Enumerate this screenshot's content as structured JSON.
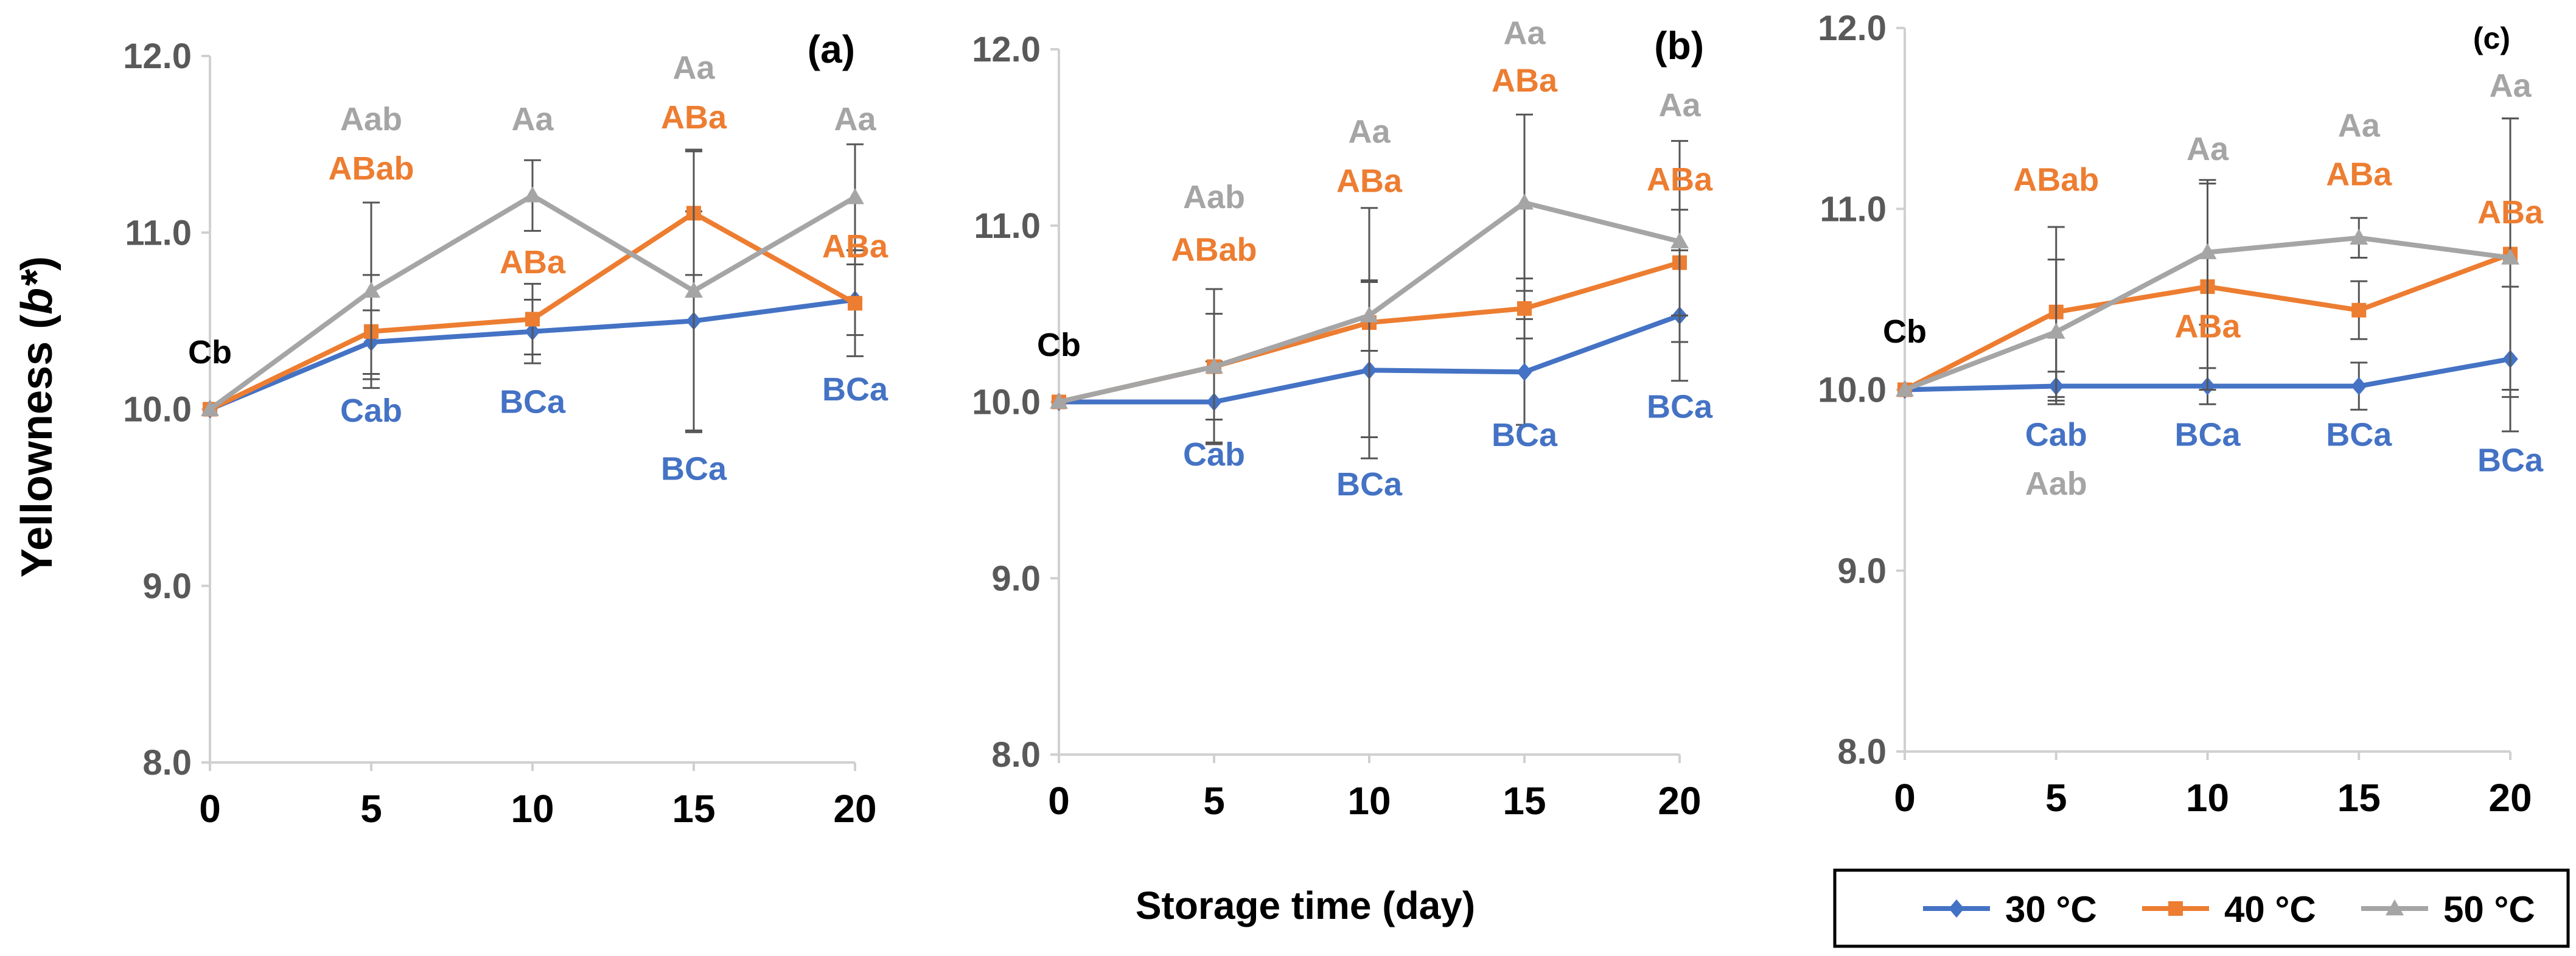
{
  "figure": {
    "ylabel_main": "Yellowness (",
    "ylabel_italic": "b*",
    "ylabel_close": ")",
    "xlabel": "Storage time (day)"
  },
  "series_colors": {
    "30 °C": "#4472C4",
    "40 °C": "#ED7D31",
    "50 °C": "#A5A5A5"
  },
  "legend": {
    "entries": [
      {
        "label": "30 °C",
        "color": "#4472C4",
        "marker": "diamond"
      },
      {
        "label": "40 °C",
        "color": "#ED7D31",
        "marker": "square"
      },
      {
        "label": "50 °C",
        "color": "#A5A5A5",
        "marker": "triangle"
      }
    ]
  },
  "chart_data": [
    {
      "type": "line",
      "panel_label": "(a)",
      "x": [
        0,
        5,
        10,
        15,
        20
      ],
      "xticks": [
        "0",
        "5",
        "10",
        "15",
        "20"
      ],
      "ylim": [
        8.0,
        12.0
      ],
      "yticks": [
        "8.0",
        "9.0",
        "10.0",
        "11.0",
        "12.0"
      ],
      "series": [
        {
          "name": "30 °C",
          "values": [
            10.0,
            10.38,
            10.44,
            10.5,
            10.62
          ],
          "err": [
            0.0,
            0.18,
            0.18,
            0.62,
            0.2
          ]
        },
        {
          "name": "40 °C",
          "values": [
            10.0,
            10.44,
            10.51,
            11.11,
            10.6
          ],
          "err": [
            0.0,
            0.32,
            0.2,
            0.35,
            0.3
          ]
        },
        {
          "name": "50 °C",
          "values": [
            10.0,
            10.67,
            11.21,
            10.67,
            11.2
          ],
          "err": [
            0.0,
            0.5,
            0.2,
            0.8,
            0.3
          ]
        }
      ],
      "annotations": [
        {
          "text": "Cb",
          "x": 0,
          "y": 10.26,
          "color": "#000000"
        },
        {
          "text": "Aab",
          "x": 5,
          "y": 11.58,
          "color": "#A5A5A5"
        },
        {
          "text": "ABab",
          "x": 5,
          "y": 11.3,
          "color": "#ED7D31"
        },
        {
          "text": "Cab",
          "x": 5,
          "y": 9.93,
          "color": "#4472C4"
        },
        {
          "text": "Aa",
          "x": 10,
          "y": 11.58,
          "color": "#A5A5A5"
        },
        {
          "text": "ABa",
          "x": 10,
          "y": 10.77,
          "color": "#ED7D31"
        },
        {
          "text": "BCa",
          "x": 10,
          "y": 9.98,
          "color": "#4472C4"
        },
        {
          "text": "Aa",
          "x": 15,
          "y": 11.87,
          "color": "#A5A5A5"
        },
        {
          "text": "ABa",
          "x": 15,
          "y": 11.59,
          "color": "#ED7D31"
        },
        {
          "text": "BCa",
          "x": 15,
          "y": 9.6,
          "color": "#4472C4"
        },
        {
          "text": "Aa",
          "x": 20,
          "y": 11.58,
          "color": "#A5A5A5"
        },
        {
          "text": "ABa",
          "x": 20,
          "y": 10.86,
          "color": "#ED7D31"
        },
        {
          "text": "BCa",
          "x": 20,
          "y": 10.05,
          "color": "#4472C4"
        }
      ]
    },
    {
      "type": "line",
      "panel_label": "(b)",
      "x": [
        0,
        5,
        10,
        15,
        20
      ],
      "xticks": [
        "0",
        "5",
        "10",
        "15",
        "20"
      ],
      "ylim": [
        8.0,
        12.0
      ],
      "yticks": [
        "8.0",
        "9.0",
        "10.0",
        "11.0",
        "12.0"
      ],
      "series": [
        {
          "name": "30 °C",
          "values": [
            10.0,
            10.0,
            10.18,
            10.17,
            10.49
          ],
          "err": [
            0.0,
            0.23,
            0.5,
            0.3,
            0.37
          ]
        },
        {
          "name": "40 °C",
          "values": [
            10.0,
            10.2,
            10.45,
            10.53,
            10.79
          ],
          "err": [
            0.0,
            0.44,
            0.65,
            0.17,
            0.3
          ]
        },
        {
          "name": "50 °C",
          "values": [
            10.0,
            10.2,
            10.49,
            11.13,
            10.91
          ],
          "err": [
            0.0,
            0.3,
            0.2,
            0.5,
            0.57
          ]
        }
      ],
      "annotations": [
        {
          "text": "Cb",
          "x": 0,
          "y": 10.26,
          "color": "#000000"
        },
        {
          "text": "Aab",
          "x": 5,
          "y": 11.1,
          "color": "#A5A5A5"
        },
        {
          "text": "ABab",
          "x": 5,
          "y": 10.8,
          "color": "#ED7D31"
        },
        {
          "text": "Cab",
          "x": 5,
          "y": 9.64,
          "color": "#4472C4"
        },
        {
          "text": "Aa",
          "x": 10,
          "y": 11.47,
          "color": "#A5A5A5"
        },
        {
          "text": "ABa",
          "x": 10,
          "y": 11.19,
          "color": "#ED7D31"
        },
        {
          "text": "BCa",
          "x": 10,
          "y": 9.47,
          "color": "#4472C4"
        },
        {
          "text": "Aa",
          "x": 15,
          "y": 12.03,
          "color": "#A5A5A5"
        },
        {
          "text": "ABa",
          "x": 15,
          "y": 11.76,
          "color": "#ED7D31"
        },
        {
          "text": "BCa",
          "x": 15,
          "y": 9.75,
          "color": "#4472C4"
        },
        {
          "text": "Aa",
          "x": 20,
          "y": 11.62,
          "color": "#A5A5A5"
        },
        {
          "text": "ABa",
          "x": 20,
          "y": 11.2,
          "color": "#ED7D31"
        },
        {
          "text": "BCa",
          "x": 20,
          "y": 9.91,
          "color": "#4472C4"
        }
      ]
    },
    {
      "type": "line",
      "panel_label": "(c)",
      "x": [
        0,
        5,
        10,
        15,
        20
      ],
      "xticks": [
        "0",
        "5",
        "10",
        "15",
        "20"
      ],
      "ylim": [
        8.0,
        12.0
      ],
      "yticks": [
        "8.0",
        "9.0",
        "10.0",
        "11.0",
        "12.0"
      ],
      "series": [
        {
          "name": "30 °C",
          "values": [
            10.0,
            10.02,
            10.02,
            10.02,
            10.17
          ],
          "err": [
            0.0,
            0.08,
            0.1,
            0.13,
            0.4
          ]
        },
        {
          "name": "40 °C",
          "values": [
            10.0,
            10.43,
            10.57,
            10.44,
            10.75
          ],
          "err": [
            0.0,
            0.47,
            0.57,
            0.16,
            0.75
          ]
        },
        {
          "name": "50 °C",
          "values": [
            10.0,
            10.32,
            10.76,
            10.84,
            10.73
          ],
          "err": [
            0.0,
            0.4,
            0.4,
            0.11,
            0.77
          ]
        }
      ],
      "annotations": [
        {
          "text": "Cb",
          "x": 0,
          "y": 10.26,
          "color": "#000000"
        },
        {
          "text": "ABab",
          "x": 5,
          "y": 11.1,
          "color": "#ED7D31"
        },
        {
          "text": "Cab",
          "x": 5,
          "y": 9.69,
          "color": "#4472C4"
        },
        {
          "text": "Aab",
          "x": 5,
          "y": 9.42,
          "color": "#A5A5A5"
        },
        {
          "text": "Aa",
          "x": 10,
          "y": 11.27,
          "color": "#A5A5A5"
        },
        {
          "text": "ABa",
          "x": 10,
          "y": 10.29,
          "color": "#ED7D31"
        },
        {
          "text": "BCa",
          "x": 10,
          "y": 9.69,
          "color": "#4472C4"
        },
        {
          "text": "Aa",
          "x": 15,
          "y": 11.4,
          "color": "#A5A5A5"
        },
        {
          "text": "ABa",
          "x": 15,
          "y": 11.13,
          "color": "#ED7D31"
        },
        {
          "text": "BCa",
          "x": 15,
          "y": 9.69,
          "color": "#4472C4"
        },
        {
          "text": "Aa",
          "x": 20,
          "y": 11.62,
          "color": "#A5A5A5"
        },
        {
          "text": "ABa",
          "x": 20,
          "y": 10.92,
          "color": "#ED7D31"
        },
        {
          "text": "BCa",
          "x": 20,
          "y": 9.55,
          "color": "#4472C4"
        }
      ]
    }
  ]
}
